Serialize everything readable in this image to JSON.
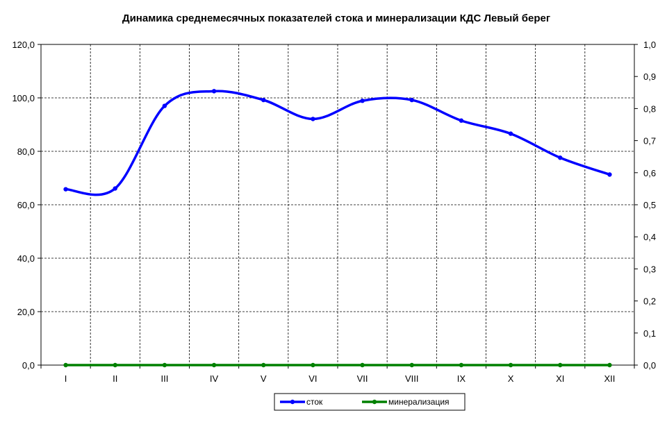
{
  "chart_data": {
    "type": "line",
    "title": "Динамика среднемесячных показателей стока и минерализации КДС Левый берег",
    "categories": [
      "I",
      "II",
      "III",
      "IV",
      "V",
      "VI",
      "VII",
      "VIII",
      "IX",
      "X",
      "XI",
      "XII"
    ],
    "y_left": {
      "range": [
        0,
        120
      ],
      "ticks": [
        "0,0",
        "20,0",
        "40,0",
        "60,0",
        "80,0",
        "100,0",
        "120,0"
      ]
    },
    "y_right": {
      "range": [
        0,
        1
      ],
      "ticks": [
        "0,0",
        "0,1",
        "0,2",
        "0,3",
        "0,4",
        "0,5",
        "0,6",
        "0,7",
        "0,8",
        "0,9",
        "1,0"
      ]
    },
    "series": [
      {
        "name": "сток",
        "axis": "left",
        "color": "#0000ff",
        "values": [
          65.8,
          66.1,
          97.0,
          102.5,
          99.2,
          92.1,
          98.9,
          99.2,
          91.5,
          86.6,
          77.6,
          71.3
        ]
      },
      {
        "name": "минерализация",
        "axis": "right",
        "color": "#008000",
        "values": [
          0,
          0,
          0,
          0,
          0,
          0,
          0,
          0,
          0,
          0,
          0,
          0
        ]
      }
    ],
    "grid": true,
    "legend": "bottom"
  }
}
